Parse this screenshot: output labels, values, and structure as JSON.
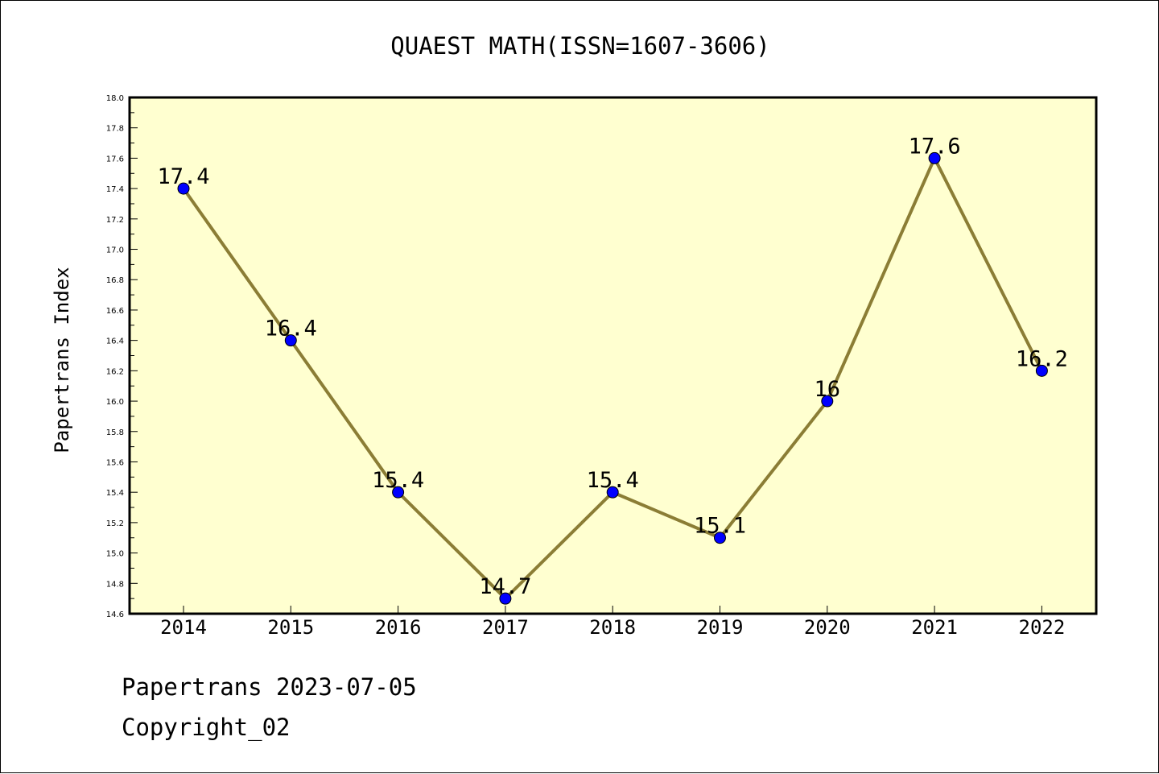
{
  "footer": {
    "line1": "Papertrans 2023-07-05",
    "line2": "Copyright_02"
  },
  "colors": {
    "plot_background": "#ffffd0",
    "line": "#8b7d35",
    "marker": "#0000ff",
    "axis": "#000000"
  },
  "chart_data": {
    "type": "line",
    "title": "QUAEST MATH(ISSN=1607-3606)",
    "xlabel": "",
    "ylabel": "Papertrans Index",
    "categories": [
      "2014",
      "2015",
      "2016",
      "2017",
      "2018",
      "2019",
      "2020",
      "2021",
      "2022"
    ],
    "series": [
      {
        "values": [
          17.4,
          16.4,
          15.4,
          14.7,
          15.4,
          15.1,
          16.0,
          17.6,
          16.2
        ],
        "data_labels": [
          "17.4",
          "16.4",
          "15.4",
          "14.7",
          "15.4",
          "15.1",
          "16",
          "17.6",
          "16.2"
        ]
      }
    ],
    "ylim": [
      14.6,
      18.0
    ],
    "yticks": [
      "14.6",
      "14.8",
      "15.0",
      "15.2",
      "15.4",
      "15.6",
      "15.8",
      "16.0",
      "16.2",
      "16.4",
      "16.6",
      "16.8",
      "17.0",
      "17.2",
      "17.4",
      "17.6",
      "17.8",
      "18.0"
    ],
    "grid": false,
    "legend": "none"
  }
}
